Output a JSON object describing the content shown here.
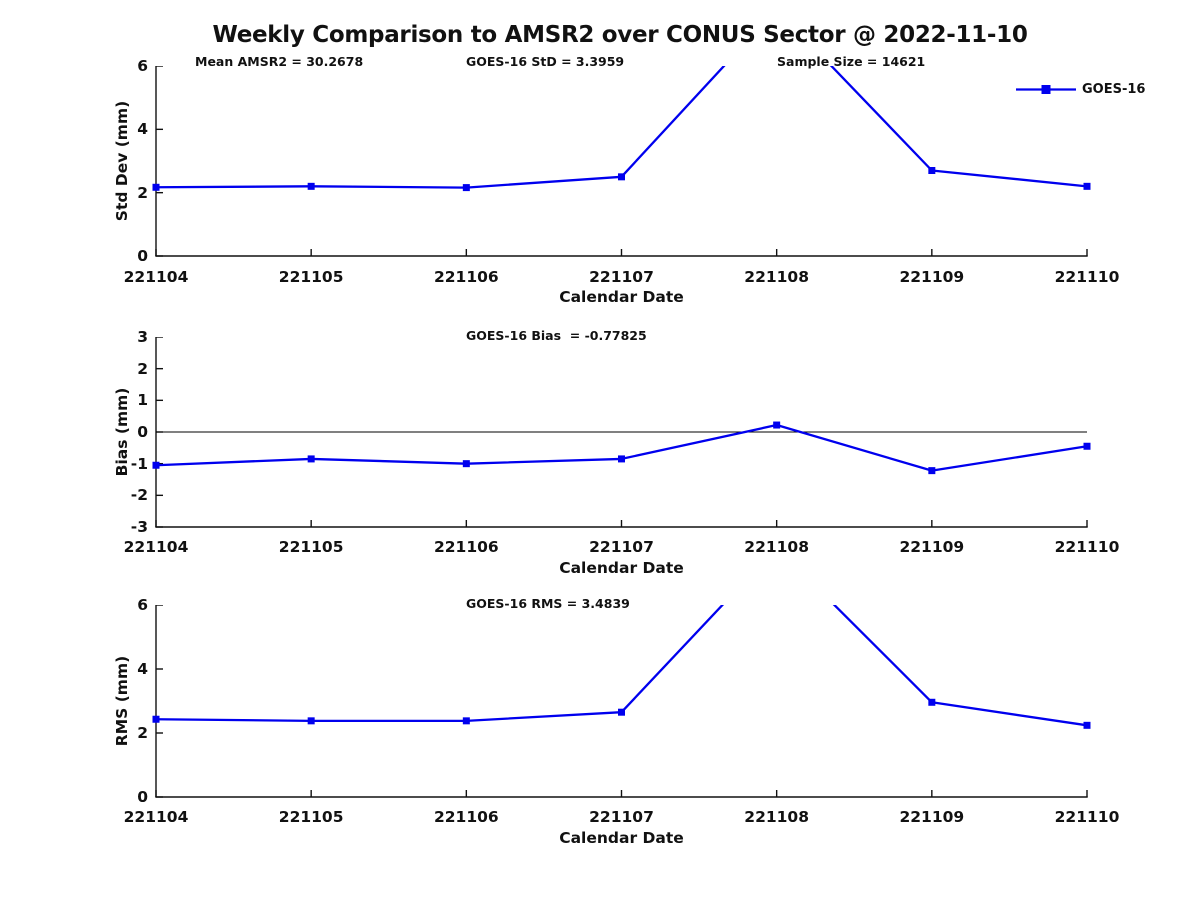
{
  "title": "Weekly Comparison to AMSR2 over CONUS Sector @ 2022-11-10",
  "legend": {
    "label": "GOES-16"
  },
  "colors": {
    "series": "#0000EE",
    "axis": "#111111",
    "zero_line": "#000000",
    "text": "#111111",
    "background": "#FFFFFF"
  },
  "chart_data": [
    {
      "name": "std-dev",
      "type": "line",
      "ylabel": "Std Dev (mm)",
      "xlabel": "Calendar Date",
      "categories": [
        "221104",
        "221105",
        "221106",
        "221107",
        "221108",
        "221109",
        "221110"
      ],
      "series": [
        {
          "name": "GOES-16",
          "values": [
            2.17,
            2.2,
            2.16,
            2.5,
            7.8,
            2.7,
            2.2
          ]
        }
      ],
      "ylim": [
        0,
        6
      ],
      "yticks": [
        0,
        2,
        4,
        6
      ],
      "grid": false,
      "marker": "square",
      "zero_line": false,
      "clipped_note": "221108 value exceeds axis max; line clipped at y=6",
      "annotations": [
        "Mean AMSR2 = 30.2678",
        "GOES-16 StD = 3.3959",
        "Sample Size = 14621"
      ]
    },
    {
      "name": "bias",
      "type": "line",
      "ylabel": "Bias (mm)",
      "xlabel": "Calendar Date",
      "categories": [
        "221104",
        "221105",
        "221106",
        "221107",
        "221108",
        "221109",
        "221110"
      ],
      "series": [
        {
          "name": "GOES-16",
          "values": [
            -1.05,
            -0.85,
            -1.0,
            -0.85,
            0.22,
            -1.22,
            -0.45
          ]
        }
      ],
      "ylim": [
        -3,
        3
      ],
      "yticks": [
        -3,
        -2,
        -1,
        0,
        1,
        2,
        3
      ],
      "grid": false,
      "marker": "square",
      "zero_line": true,
      "annotations": [
        "GOES-16 Bias  = -0.77825"
      ]
    },
    {
      "name": "rms",
      "type": "line",
      "ylabel": "RMS (mm)",
      "xlabel": "Calendar Date",
      "categories": [
        "221104",
        "221105",
        "221106",
        "221107",
        "221108",
        "221109",
        "221110"
      ],
      "series": [
        {
          "name": "GOES-16",
          "values": [
            2.43,
            2.38,
            2.38,
            2.65,
            7.8,
            2.96,
            2.24
          ]
        }
      ],
      "ylim": [
        0,
        6
      ],
      "yticks": [
        0,
        2,
        4,
        6
      ],
      "grid": false,
      "marker": "square",
      "zero_line": false,
      "clipped_note": "221108 value exceeds axis max; line clipped at y=6",
      "annotations": [
        "GOES-16 RMS = 3.4839"
      ]
    }
  ]
}
